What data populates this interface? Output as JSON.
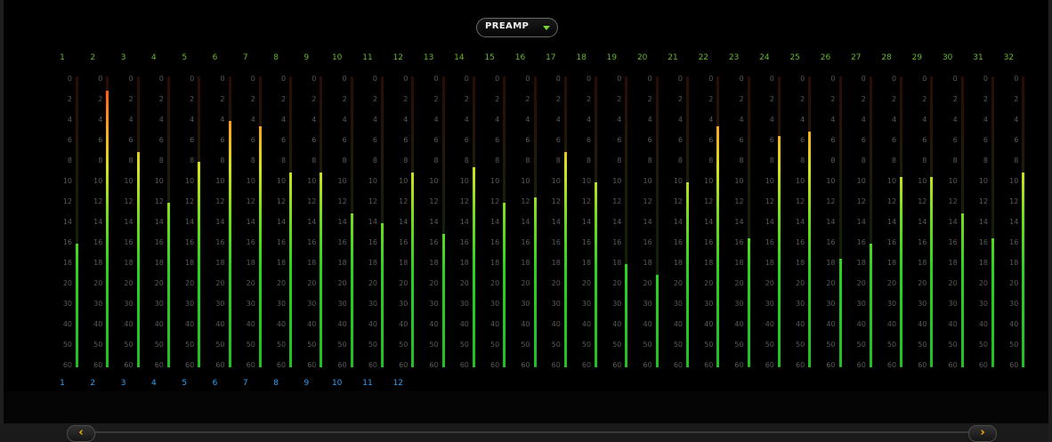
{
  "section_selector": {
    "value": "PREAMP",
    "icon": "chevron-down-icon",
    "icon_color": "#7bd62e"
  },
  "scale_labels": [
    "0",
    "2",
    "4",
    "6",
    "8",
    "10",
    "12",
    "14",
    "16",
    "18",
    "20",
    "30",
    "40",
    "50",
    "60"
  ],
  "channels": [
    {
      "num": "1",
      "level_db": 16
    },
    {
      "num": "2",
      "level_db": 1
    },
    {
      "num": "3",
      "level_db": 7
    },
    {
      "num": "4",
      "level_db": 12
    },
    {
      "num": "5",
      "level_db": 8
    },
    {
      "num": "6",
      "level_db": 4
    },
    {
      "num": "7",
      "level_db": 4.5
    },
    {
      "num": "8",
      "level_db": 9
    },
    {
      "num": "9",
      "level_db": 9
    },
    {
      "num": "10",
      "level_db": 13
    },
    {
      "num": "11",
      "level_db": 14
    },
    {
      "num": "12",
      "level_db": 9
    },
    {
      "num": "13",
      "level_db": 15
    },
    {
      "num": "14",
      "level_db": 8.5
    },
    {
      "num": "15",
      "level_db": 12
    },
    {
      "num": "16",
      "level_db": 11.5
    },
    {
      "num": "17",
      "level_db": 7
    },
    {
      "num": "18",
      "level_db": 10
    },
    {
      "num": "19",
      "level_db": 18
    },
    {
      "num": "20",
      "level_db": 19
    },
    {
      "num": "21",
      "level_db": 10
    },
    {
      "num": "22",
      "level_db": 4.5
    },
    {
      "num": "23",
      "level_db": 15.5
    },
    {
      "num": "24",
      "level_db": 5.5
    },
    {
      "num": "25",
      "level_db": 5
    },
    {
      "num": "26",
      "level_db": 17.5
    },
    {
      "num": "27",
      "level_db": 16
    },
    {
      "num": "28",
      "level_db": 9.5
    },
    {
      "num": "29",
      "level_db": 9.5
    },
    {
      "num": "30",
      "level_db": 13
    },
    {
      "num": "31",
      "level_db": 15.5
    },
    {
      "num": "32",
      "level_db": 9
    }
  ],
  "input_numbers": [
    "1",
    "2",
    "3",
    "4",
    "5",
    "6",
    "7",
    "8",
    "9",
    "10",
    "11",
    "12"
  ],
  "scroll": {
    "left_icon": "chevron-left-icon",
    "right_icon": "chevron-right-icon",
    "left_glyph": "‹",
    "right_glyph": "›"
  }
}
